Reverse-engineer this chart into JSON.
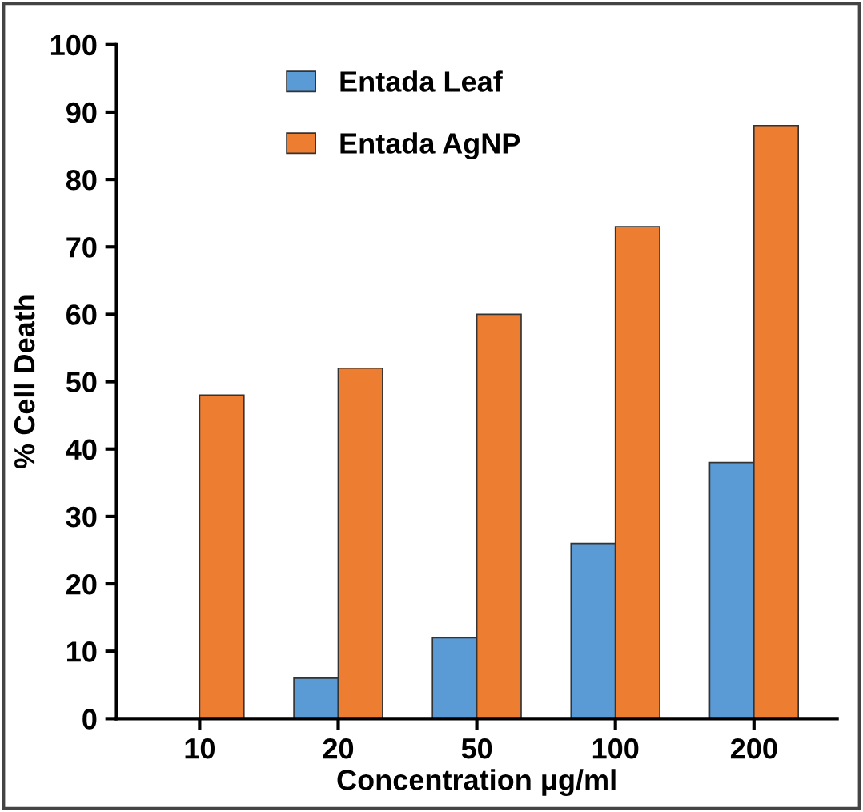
{
  "chart_data": {
    "type": "bar",
    "xlabel": "Concentration μg/ml",
    "ylabel": "% Cell Death",
    "categories": [
      "10",
      "20",
      "50",
      "100",
      "200"
    ],
    "series": [
      {
        "name": "Entada Leaf",
        "color": "#5b9bd5",
        "values": [
          null,
          6,
          12,
          26,
          38
        ]
      },
      {
        "name": "Entada AgNP",
        "color": "#ed7d31",
        "values": [
          48,
          52,
          60,
          73,
          88
        ]
      }
    ],
    "ylim": [
      0,
      100
    ],
    "yticks": [
      0,
      10,
      20,
      30,
      40,
      50,
      60,
      70,
      80,
      90,
      100
    ],
    "grid": false,
    "legend": "top left"
  }
}
